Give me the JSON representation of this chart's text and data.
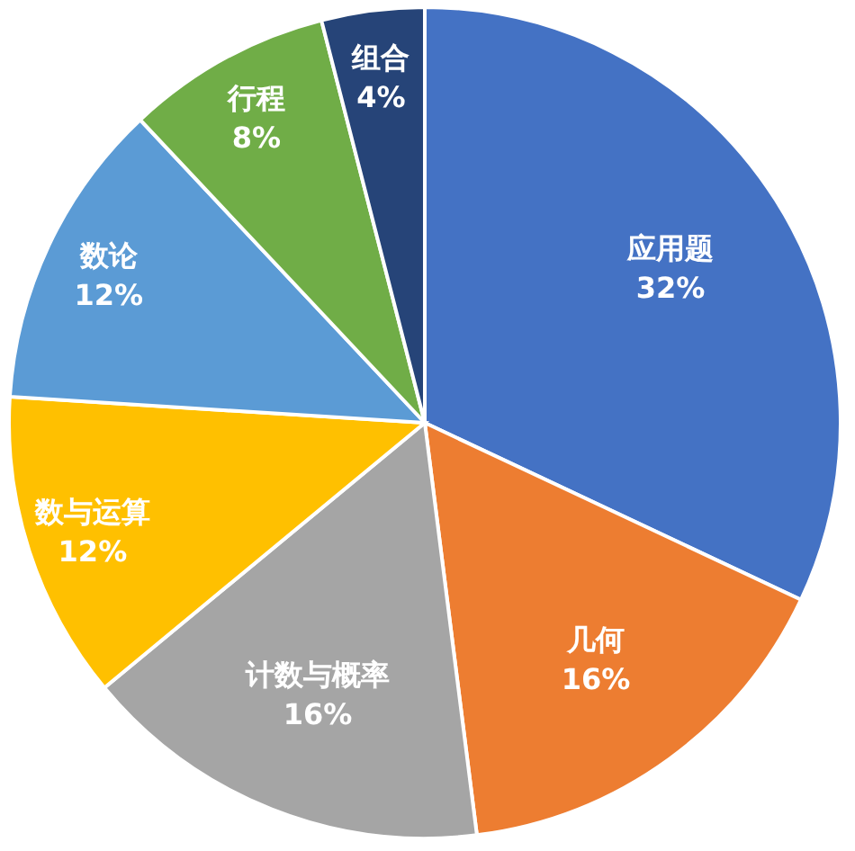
{
  "chart_data": {
    "type": "pie",
    "categories": [
      "应用题",
      "几何",
      "计数与概率",
      "数与运算",
      "数论",
      "行程",
      "组合"
    ],
    "values": [
      32,
      16,
      16,
      12,
      12,
      8,
      4
    ],
    "value_labels": [
      "32%",
      "16%",
      "16%",
      "12%",
      "12%",
      "8%",
      "4%"
    ],
    "colors": [
      "#4472c4",
      "#ed7d31",
      "#a5a5a5",
      "#ffc000",
      "#5b9bd5",
      "#70ad47",
      "#264478"
    ]
  }
}
